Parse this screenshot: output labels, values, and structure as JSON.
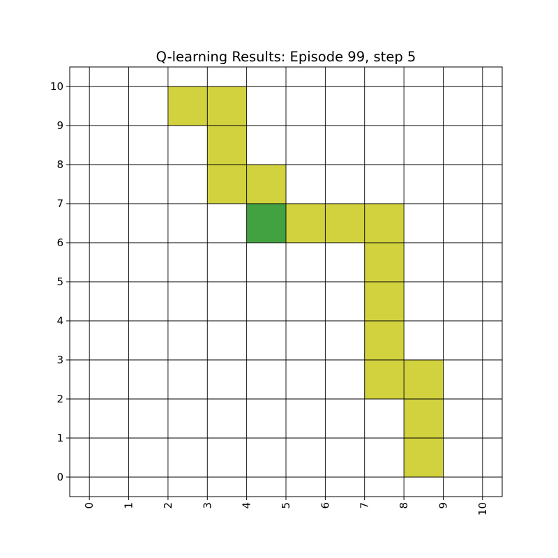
{
  "chart_data": {
    "type": "heatmap",
    "title": "Q-learning Results: Episode 99, step 5",
    "xlabel": "",
    "ylabel": "",
    "xlim": [
      -0.5,
      10.5
    ],
    "ylim": [
      -0.5,
      10.5
    ],
    "x_ticks": [
      "0",
      "1",
      "2",
      "3",
      "4",
      "5",
      "6",
      "7",
      "8",
      "9",
      "10"
    ],
    "y_ticks": [
      "0",
      "1",
      "2",
      "3",
      "4",
      "5",
      "6",
      "7",
      "8",
      "9",
      "10"
    ],
    "x_tick_rotation": 90,
    "grid": true,
    "colors": {
      "path": "#d2d23f",
      "current": "#42a242",
      "grid": "#000000",
      "background": "#ffffff"
    },
    "path_cells": [
      [
        2,
        9
      ],
      [
        3,
        9
      ],
      [
        3,
        8
      ],
      [
        3,
        7
      ],
      [
        4,
        7
      ],
      [
        5,
        6
      ],
      [
        6,
        6
      ],
      [
        7,
        6
      ],
      [
        7,
        5
      ],
      [
        7,
        4
      ],
      [
        7,
        3
      ],
      [
        7,
        2
      ],
      [
        8,
        2
      ],
      [
        8,
        1
      ],
      [
        8,
        0
      ]
    ],
    "current_cell": [
      4,
      6
    ]
  }
}
